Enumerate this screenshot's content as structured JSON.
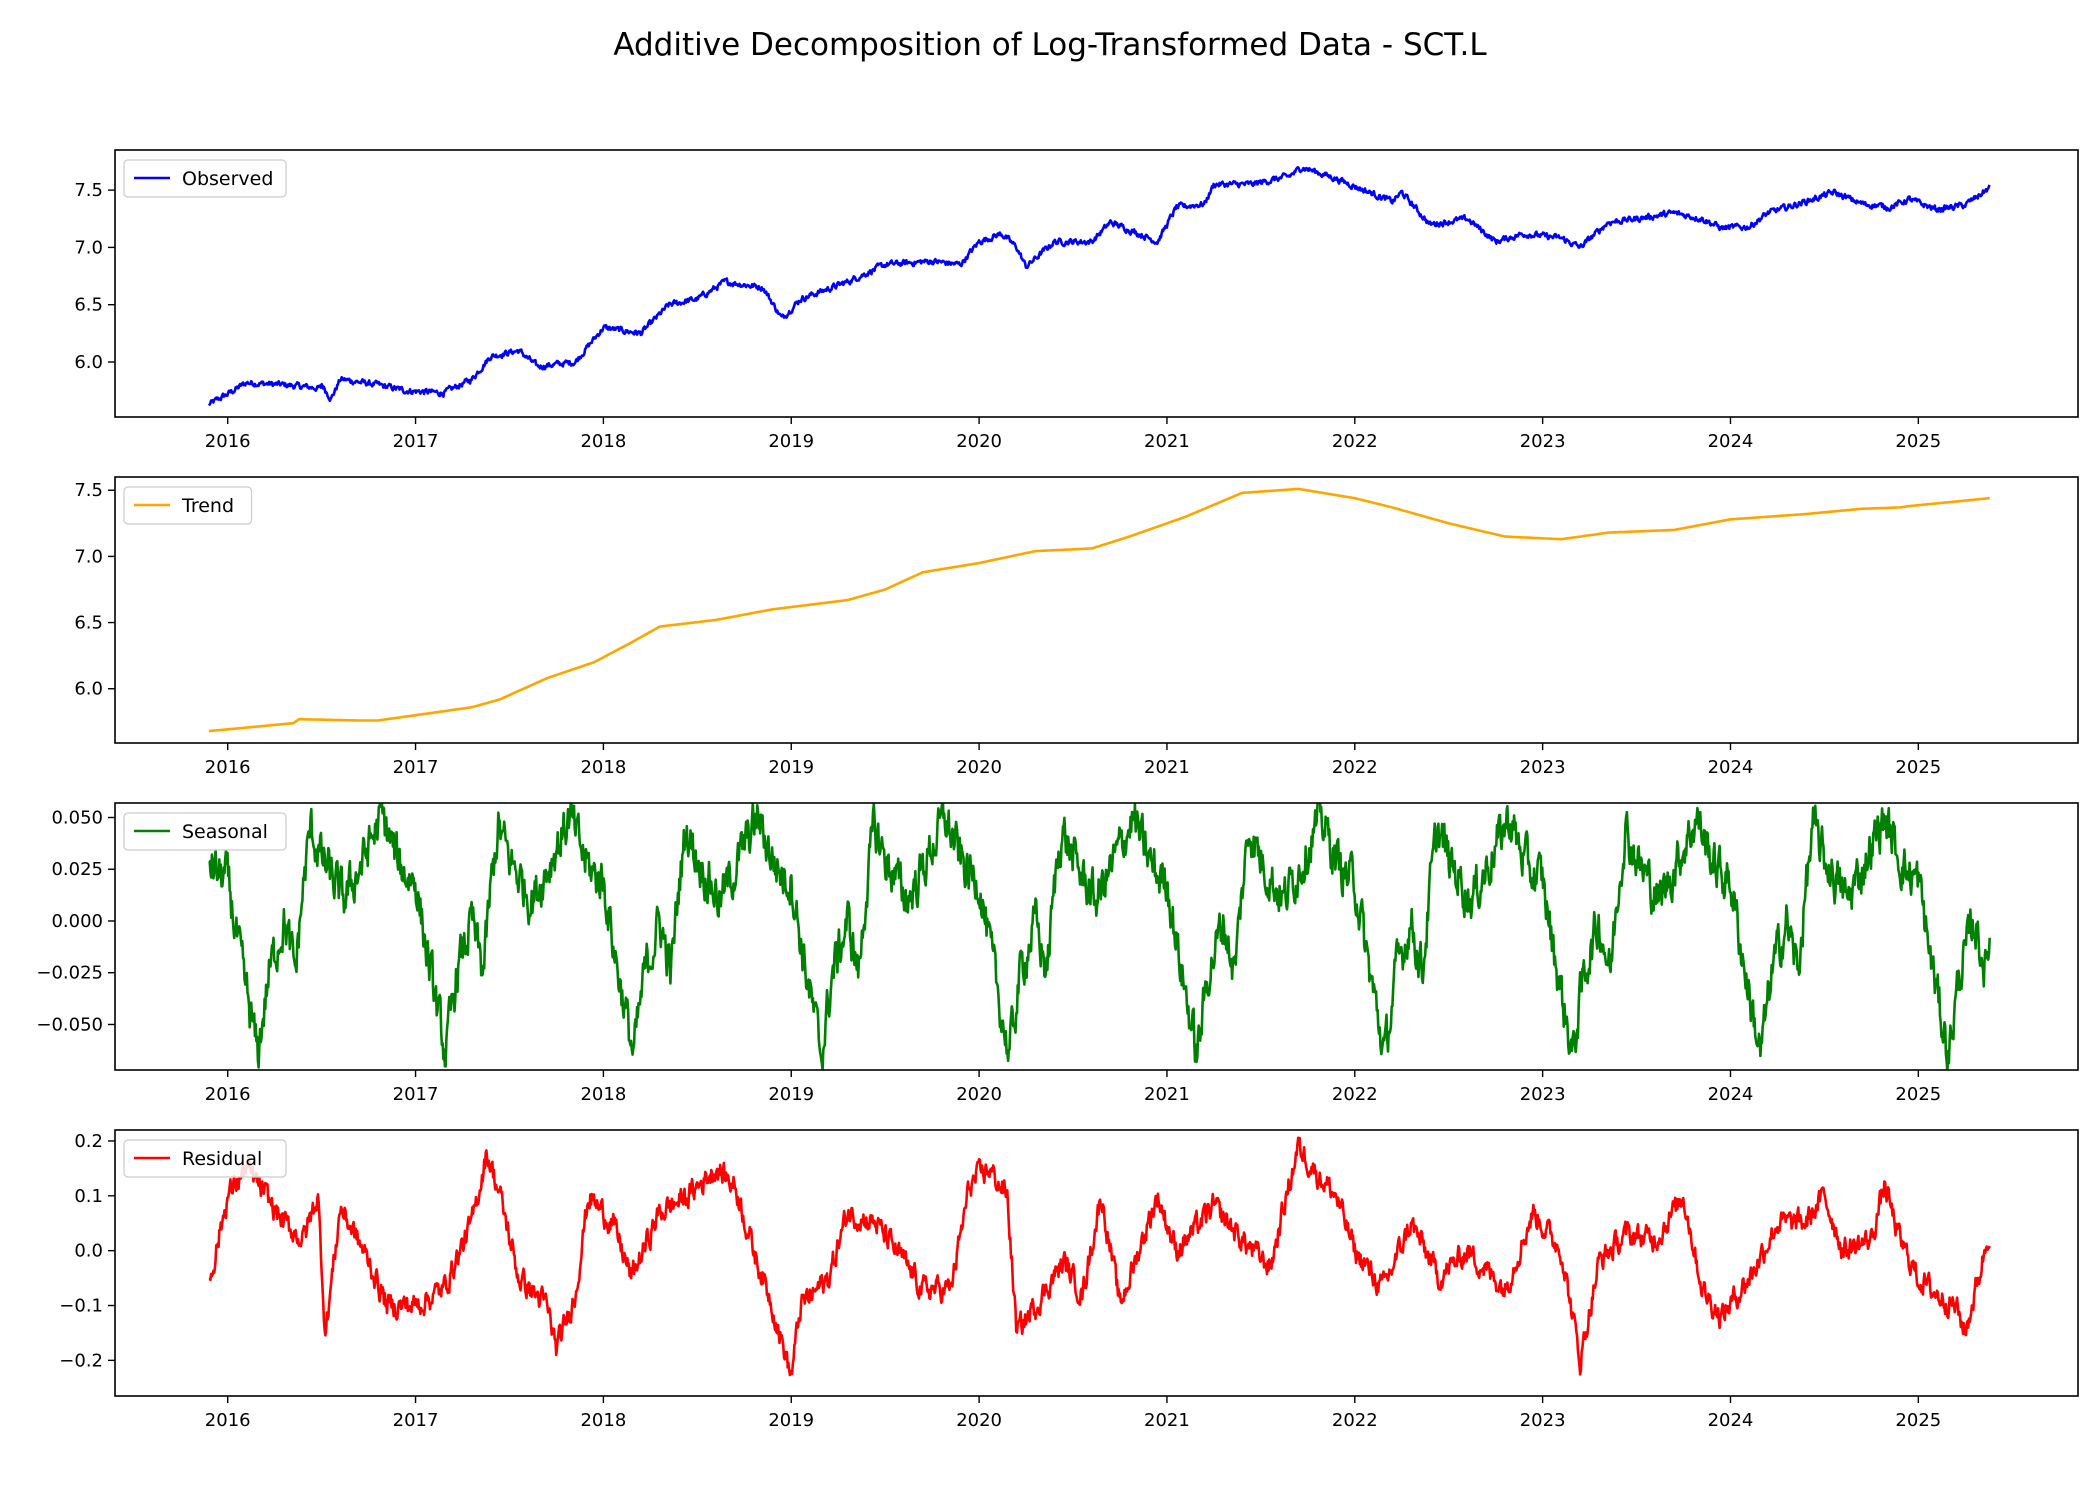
{
  "chart_data": {
    "title": "Additive Decomposition of Log-Transformed Data - SCT.L",
    "x_range": [
      2015.4,
      2025.85
    ],
    "x_ticks": [
      2016,
      2017,
      2018,
      2019,
      2020,
      2021,
      2022,
      2023,
      2024,
      2025
    ],
    "x_start": 2015.9,
    "x_end": 2025.38,
    "panels": [
      {
        "name": "observed",
        "type": "line",
        "label": "Observed",
        "color": "#0000ff",
        "ylim": [
          5.52,
          7.85
        ],
        "y_ticks": [
          6.0,
          6.5,
          7.0,
          7.5
        ],
        "y_tick_labels": [
          "6.0",
          "6.5",
          "7.0",
          "7.5"
        ],
        "noise": 0.022,
        "knots": [
          [
            2015.9,
            5.63
          ],
          [
            2016.0,
            5.72
          ],
          [
            2016.1,
            5.82
          ],
          [
            2016.3,
            5.8
          ],
          [
            2016.5,
            5.77
          ],
          [
            2016.45,
            5.93
          ],
          [
            2016.55,
            5.68
          ],
          [
            2016.6,
            5.85
          ],
          [
            2016.8,
            5.8
          ],
          [
            2016.95,
            5.75
          ],
          [
            2017.15,
            5.73
          ],
          [
            2017.3,
            5.85
          ],
          [
            2017.4,
            6.05
          ],
          [
            2017.55,
            6.1
          ],
          [
            2017.65,
            5.96
          ],
          [
            2017.85,
            6.0
          ],
          [
            2018.0,
            6.3
          ],
          [
            2018.2,
            6.25
          ],
          [
            2018.35,
            6.5
          ],
          [
            2018.5,
            6.55
          ],
          [
            2018.65,
            6.7
          ],
          [
            2018.85,
            6.65
          ],
          [
            2018.95,
            6.38
          ],
          [
            2019.05,
            6.55
          ],
          [
            2019.3,
            6.7
          ],
          [
            2019.5,
            6.85
          ],
          [
            2019.75,
            6.88
          ],
          [
            2019.9,
            6.85
          ],
          [
            2020.0,
            7.05
          ],
          [
            2020.12,
            7.12
          ],
          [
            2020.2,
            7.0
          ],
          [
            2020.25,
            6.83
          ],
          [
            2020.4,
            7.05
          ],
          [
            2020.6,
            7.05
          ],
          [
            2020.7,
            7.22
          ],
          [
            2020.85,
            7.12
          ],
          [
            2020.95,
            7.05
          ],
          [
            2021.05,
            7.35
          ],
          [
            2021.2,
            7.38
          ],
          [
            2021.25,
            7.55
          ],
          [
            2021.45,
            7.55
          ],
          [
            2021.65,
            7.62
          ],
          [
            2021.72,
            7.7
          ],
          [
            2021.9,
            7.6
          ],
          [
            2022.05,
            7.5
          ],
          [
            2022.2,
            7.4
          ],
          [
            2022.25,
            7.48
          ],
          [
            2022.4,
            7.2
          ],
          [
            2022.6,
            7.25
          ],
          [
            2022.75,
            7.05
          ],
          [
            2022.9,
            7.12
          ],
          [
            2023.1,
            7.08
          ],
          [
            2023.2,
            7.0
          ],
          [
            2023.35,
            7.22
          ],
          [
            2023.5,
            7.25
          ],
          [
            2023.7,
            7.3
          ],
          [
            2023.85,
            7.25
          ],
          [
            2023.95,
            7.17
          ],
          [
            2024.1,
            7.18
          ],
          [
            2024.2,
            7.3
          ],
          [
            2024.4,
            7.4
          ],
          [
            2024.55,
            7.48
          ],
          [
            2024.7,
            7.38
          ],
          [
            2024.85,
            7.35
          ],
          [
            2024.95,
            7.42
          ],
          [
            2025.1,
            7.33
          ],
          [
            2025.25,
            7.37
          ],
          [
            2025.38,
            7.52
          ]
        ]
      },
      {
        "name": "trend",
        "type": "line",
        "label": "Trend",
        "color": "#ffa500",
        "ylim": [
          5.59,
          7.6
        ],
        "y_ticks": [
          6.0,
          6.5,
          7.0,
          7.5
        ],
        "y_tick_labels": [
          "6.0",
          "6.5",
          "7.0",
          "7.5"
        ],
        "noise": 0,
        "knots": [
          [
            2015.9,
            5.68
          ],
          [
            2016.35,
            5.74
          ],
          [
            2016.38,
            5.77
          ],
          [
            2016.7,
            5.76
          ],
          [
            2016.8,
            5.76
          ],
          [
            2017.1,
            5.82
          ],
          [
            2017.3,
            5.86
          ],
          [
            2017.45,
            5.92
          ],
          [
            2017.7,
            6.08
          ],
          [
            2017.95,
            6.2
          ],
          [
            2018.15,
            6.35
          ],
          [
            2018.3,
            6.47
          ],
          [
            2018.6,
            6.52
          ],
          [
            2018.9,
            6.6
          ],
          [
            2019.3,
            6.67
          ],
          [
            2019.5,
            6.75
          ],
          [
            2019.7,
            6.88
          ],
          [
            2020.0,
            6.95
          ],
          [
            2020.3,
            7.04
          ],
          [
            2020.6,
            7.06
          ],
          [
            2020.8,
            7.15
          ],
          [
            2021.1,
            7.3
          ],
          [
            2021.4,
            7.48
          ],
          [
            2021.7,
            7.51
          ],
          [
            2022.0,
            7.44
          ],
          [
            2022.2,
            7.37
          ],
          [
            2022.5,
            7.25
          ],
          [
            2022.8,
            7.15
          ],
          [
            2023.1,
            7.13
          ],
          [
            2023.35,
            7.18
          ],
          [
            2023.7,
            7.2
          ],
          [
            2024.0,
            7.28
          ],
          [
            2024.4,
            7.32
          ],
          [
            2024.7,
            7.36
          ],
          [
            2024.9,
            7.37
          ],
          [
            2024.95,
            7.38
          ],
          [
            2025.38,
            7.44
          ]
        ]
      },
      {
        "name": "seasonal",
        "type": "line",
        "label": "Seasonal",
        "color": "#008000",
        "ylim": [
          -0.072,
          0.057
        ],
        "y_ticks": [
          -0.05,
          -0.025,
          0.0,
          0.025,
          0.05
        ],
        "y_tick_labels": [
          "−0.050",
          "−0.025",
          "0.000",
          "0.025",
          "0.050"
        ],
        "noise": 0.009,
        "periodic": true,
        "knots": [
          [
            0.0,
            0.02
          ],
          [
            0.06,
            -0.015
          ],
          [
            0.12,
            -0.045
          ],
          [
            0.16,
            -0.065
          ],
          [
            0.22,
            -0.025
          ],
          [
            0.3,
            0.0
          ],
          [
            0.36,
            -0.025
          ],
          [
            0.4,
            0.015
          ],
          [
            0.44,
            0.045
          ],
          [
            0.5,
            0.03
          ],
          [
            0.56,
            0.02
          ],
          [
            0.62,
            0.01
          ],
          [
            0.7,
            0.025
          ],
          [
            0.77,
            0.04
          ],
          [
            0.82,
            0.05
          ],
          [
            0.9,
            0.03
          ],
          [
            0.95,
            0.022
          ],
          [
            1.0,
            0.02
          ]
        ]
      },
      {
        "name": "residual",
        "type": "line",
        "label": "Residual",
        "color": "#ff0000",
        "ylim": [
          -0.265,
          0.22
        ],
        "y_ticks": [
          -0.2,
          -0.1,
          0.0,
          0.1,
          0.2
        ],
        "y_tick_labels": [
          "−0.2",
          "−0.1",
          "0.0",
          "0.1",
          "0.2"
        ],
        "noise": 0.018,
        "knots": [
          [
            2015.9,
            -0.06
          ],
          [
            2016.0,
            0.1
          ],
          [
            2016.1,
            0.15
          ],
          [
            2016.2,
            0.1
          ],
          [
            2016.3,
            0.05
          ],
          [
            2016.4,
            0.02
          ],
          [
            2016.48,
            0.1
          ],
          [
            2016.52,
            -0.15
          ],
          [
            2016.6,
            0.08
          ],
          [
            2016.75,
            -0.02
          ],
          [
            2016.85,
            -0.1
          ],
          [
            2017.0,
            -0.1
          ],
          [
            2017.15,
            -0.07
          ],
          [
            2017.3,
            0.05
          ],
          [
            2017.38,
            0.18
          ],
          [
            2017.45,
            0.1
          ],
          [
            2017.55,
            -0.05
          ],
          [
            2017.7,
            -0.1
          ],
          [
            2017.75,
            -0.18
          ],
          [
            2017.85,
            -0.08
          ],
          [
            2017.92,
            0.1
          ],
          [
            2018.05,
            0.05
          ],
          [
            2018.15,
            -0.05
          ],
          [
            2018.3,
            0.07
          ],
          [
            2018.45,
            0.1
          ],
          [
            2018.6,
            0.15
          ],
          [
            2018.7,
            0.12
          ],
          [
            2018.8,
            0.0
          ],
          [
            2018.9,
            -0.1
          ],
          [
            2019.0,
            -0.23
          ],
          [
            2019.05,
            -0.1
          ],
          [
            2019.2,
            -0.05
          ],
          [
            2019.3,
            0.07
          ],
          [
            2019.45,
            0.05
          ],
          [
            2019.6,
            -0.02
          ],
          [
            2019.7,
            -0.07
          ],
          [
            2019.85,
            -0.07
          ],
          [
            2019.95,
            0.12
          ],
          [
            2020.05,
            0.15
          ],
          [
            2020.15,
            0.1
          ],
          [
            2020.2,
            -0.15
          ],
          [
            2020.3,
            -0.1
          ],
          [
            2020.45,
            -0.02
          ],
          [
            2020.55,
            -0.08
          ],
          [
            2020.65,
            0.1
          ],
          [
            2020.75,
            -0.1
          ],
          [
            2020.85,
            0.0
          ],
          [
            2020.95,
            0.1
          ],
          [
            2021.05,
            0.0
          ],
          [
            2021.25,
            0.08
          ],
          [
            2021.4,
            0.02
          ],
          [
            2021.55,
            -0.03
          ],
          [
            2021.65,
            0.12
          ],
          [
            2021.7,
            0.19
          ],
          [
            2021.8,
            0.14
          ],
          [
            2021.9,
            0.1
          ],
          [
            2022.0,
            0.0
          ],
          [
            2022.15,
            -0.07
          ],
          [
            2022.3,
            0.05
          ],
          [
            2022.45,
            -0.05
          ],
          [
            2022.6,
            0.0
          ],
          [
            2022.8,
            -0.07
          ],
          [
            2022.95,
            0.07
          ],
          [
            2023.1,
            0.0
          ],
          [
            2023.2,
            -0.2
          ],
          [
            2023.3,
            -0.02
          ],
          [
            2023.45,
            0.03
          ],
          [
            2023.6,
            0.02
          ],
          [
            2023.75,
            0.1
          ],
          [
            2023.85,
            -0.07
          ],
          [
            2023.95,
            -0.12
          ],
          [
            2024.1,
            -0.05
          ],
          [
            2024.25,
            0.05
          ],
          [
            2024.4,
            0.05
          ],
          [
            2024.5,
            0.1
          ],
          [
            2024.6,
            0.0
          ],
          [
            2024.75,
            0.02
          ],
          [
            2024.82,
            0.12
          ],
          [
            2024.9,
            0.02
          ],
          [
            2025.0,
            -0.05
          ],
          [
            2025.1,
            -0.08
          ],
          [
            2025.2,
            -0.1
          ],
          [
            2025.25,
            -0.15
          ],
          [
            2025.32,
            -0.05
          ],
          [
            2025.38,
            0.04
          ]
        ]
      }
    ]
  }
}
